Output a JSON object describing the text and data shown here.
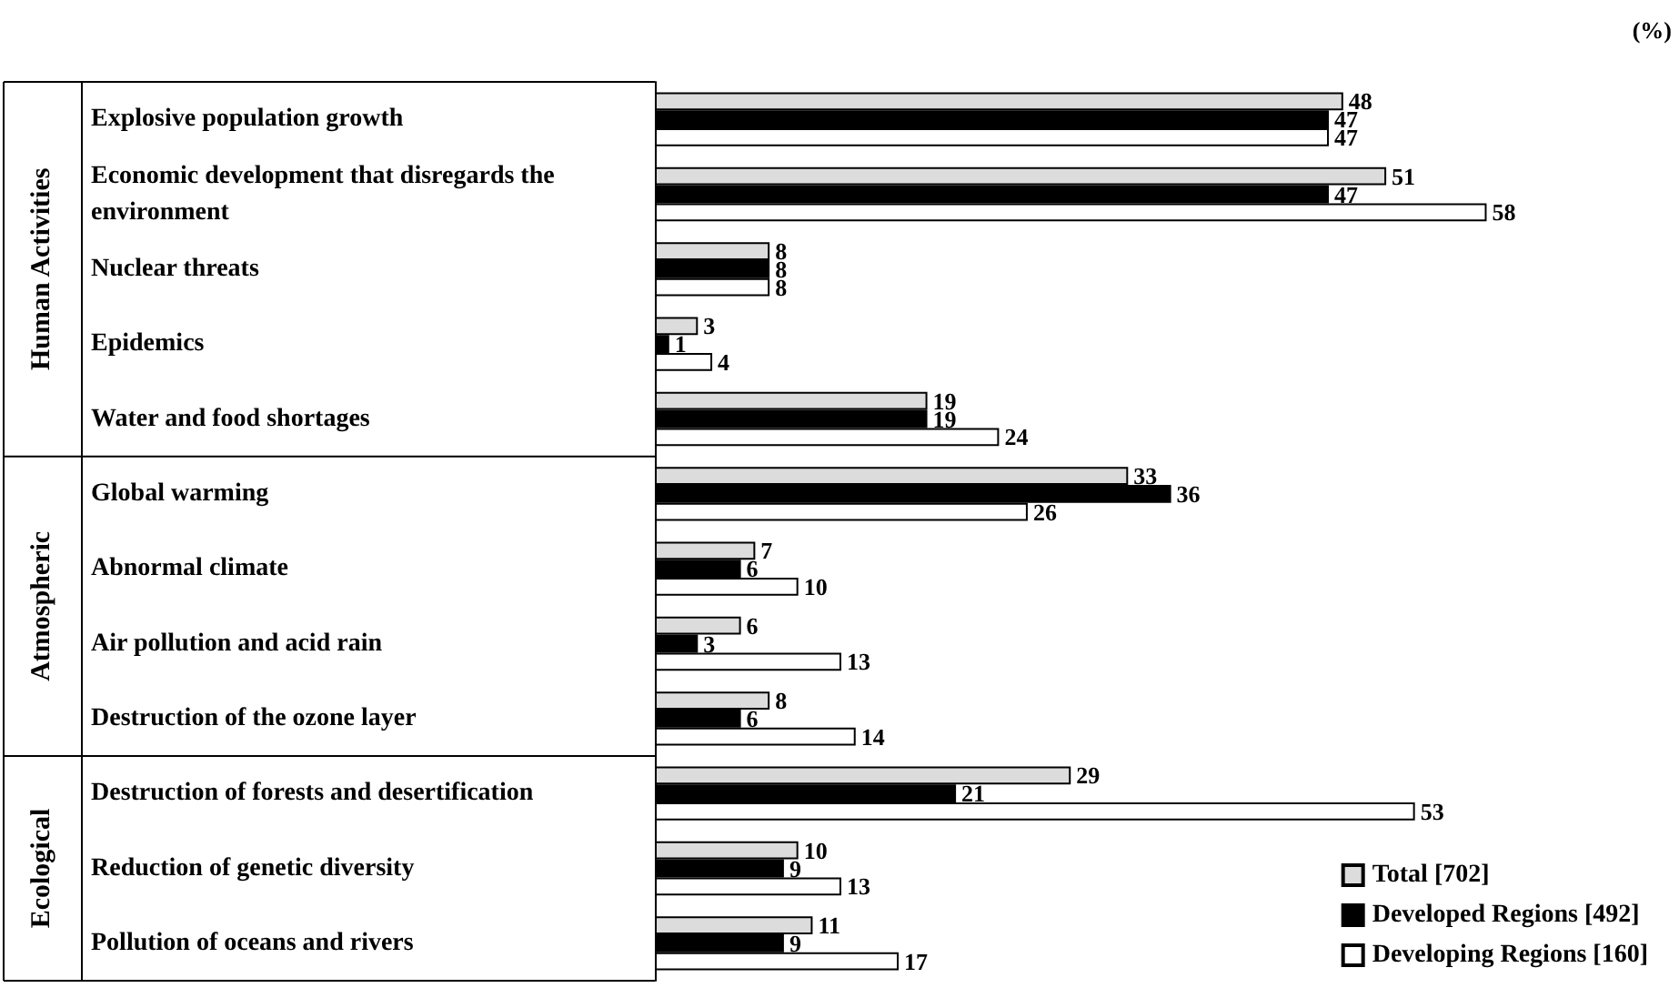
{
  "chart_data": {
    "type": "bar",
    "orientation": "horizontal",
    "data_labels": true,
    "legend": "bottom right",
    "tick_labels": "y",
    "categories": [
      "Explosive population growth",
      "Economic development that disregards the environment",
      "Nuclear threats",
      "Epidemics",
      "Water and food shortages",
      "Global warming",
      "Abnormal climate",
      "Air pollution and acid rain",
      "Destruction of the ozone layer",
      "Destruction of forests and desertification",
      "Reduction of genetic diversity",
      "Pollution of oceans and rivers"
    ],
    "series": [
      {
        "name": "Total [702]",
        "color": "#dcdcdc",
        "values": [
          48,
          51,
          8,
          3,
          19,
          33,
          7,
          6,
          8,
          29,
          10,
          11
        ]
      },
      {
        "name": "Developed Regions [492]",
        "color": "#000000",
        "values": [
          47,
          47,
          8,
          1,
          19,
          36,
          6,
          3,
          6,
          21,
          9,
          9
        ]
      },
      {
        "name": "Developing Regions [160]",
        "color": "#ffffff",
        "values": [
          47,
          58,
          8,
          4,
          24,
          26,
          10,
          13,
          14,
          53,
          13,
          17
        ]
      }
    ],
    "annotations": [
      "(%)",
      "Human Activities",
      "Atmospheric",
      "Ecological"
    ]
  }
}
